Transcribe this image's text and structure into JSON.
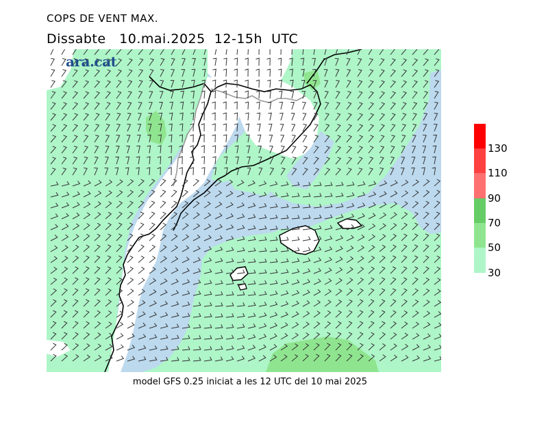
{
  "header": {
    "title": "COPS DE VENT MAX.",
    "subtitle": "Dissabte   10.mai.2025  12-15h  UTC"
  },
  "logo": {
    "text": "ara.cat"
  },
  "footer": {
    "text": "model GFS 0.25 iniciat a les 12 UTC del 10 mai 2025"
  },
  "legend": {
    "labels": [
      "30",
      "50",
      "70",
      "90",
      "110",
      "130"
    ],
    "colors": {
      "band_30_50": "#aef5c8",
      "band_50_70": "#8fe58f",
      "band_70_90": "#66cc66",
      "band_90_110": "#ff7070",
      "band_110_130": "#ff4040",
      "band_130_plus": "#ff0000"
    }
  },
  "map": {
    "colors": {
      "sea_calm": "#bcd9ee",
      "wind_30_50": "#aef5c8",
      "wind_50_70": "#8fe58f",
      "land_calm": "#ffffff",
      "coastline": "#000000",
      "border": "#999999",
      "barb": "#333333"
    }
  }
}
